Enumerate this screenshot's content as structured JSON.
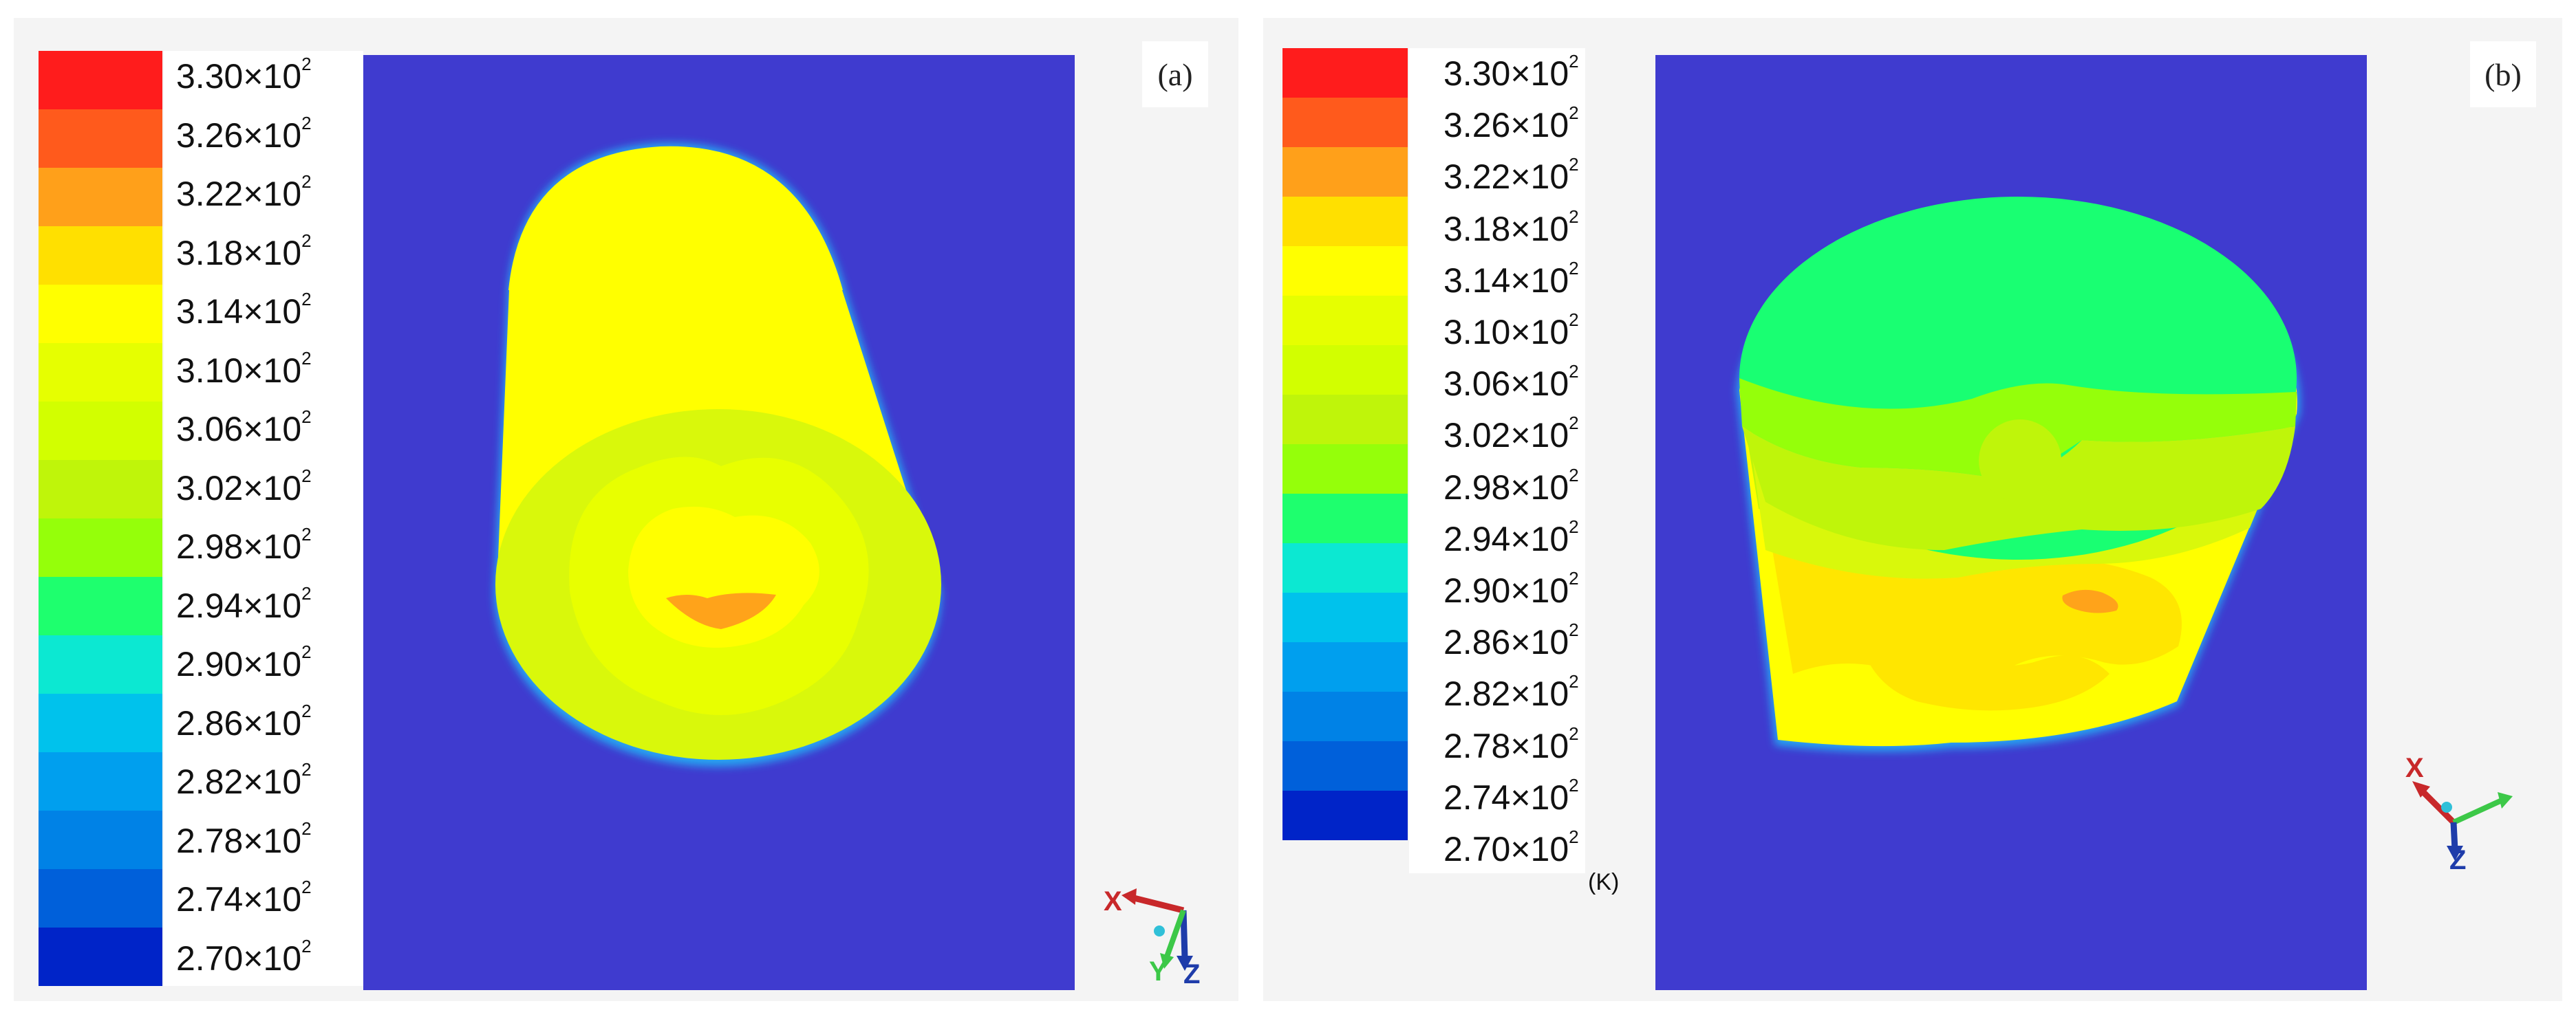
{
  "panels": [
    {
      "tag": "(a)",
      "legend_labels": [
        "3.30×10",
        "3.26×10",
        "3.22×10",
        "3.18×10",
        "3.14×10",
        "3.10×10",
        "3.06×10",
        "3.02×10",
        "2.98×10",
        "2.94×10",
        "2.90×10",
        "2.86×10",
        "2.82×10",
        "2.78×10",
        "2.74×10",
        "2.70×10"
      ],
      "exponent": "2",
      "unit": "",
      "axes": {
        "x": "X",
        "y": "Y",
        "z": "Z"
      }
    },
    {
      "tag": "(b)",
      "legend_labels": [
        "3.30×10",
        "3.26×10",
        "3.22×10",
        "3.18×10",
        "3.14×10",
        "3.10×10",
        "3.06×10",
        "3.02×10",
        "2.98×10",
        "2.94×10",
        "2.90×10",
        "2.86×10",
        "2.82×10",
        "2.78×10",
        "2.74×10",
        "2.70×10"
      ],
      "exponent": "2",
      "unit": "(K)",
      "axes": {
        "x": "X",
        "y": "",
        "z": "Z"
      }
    }
  ],
  "colormap": [
    "#ff1c1c",
    "#ff5a1c",
    "#ffa01a",
    "#ffe000",
    "#ffff00",
    "#e6ff00",
    "#d2ff00",
    "#bff50a",
    "#95ff0a",
    "#1eff6e",
    "#0ce8d2",
    "#00c2ec",
    "#009fee",
    "#0082e6",
    "#0060da",
    "#0024c8"
  ],
  "colors": {
    "background": "#3f3bcf",
    "cylinder_side": "#ffff00",
    "cylinder_end": "#d8f70a",
    "hot_spot": "#ffa31a",
    "cool_top": "#19ff72"
  }
}
